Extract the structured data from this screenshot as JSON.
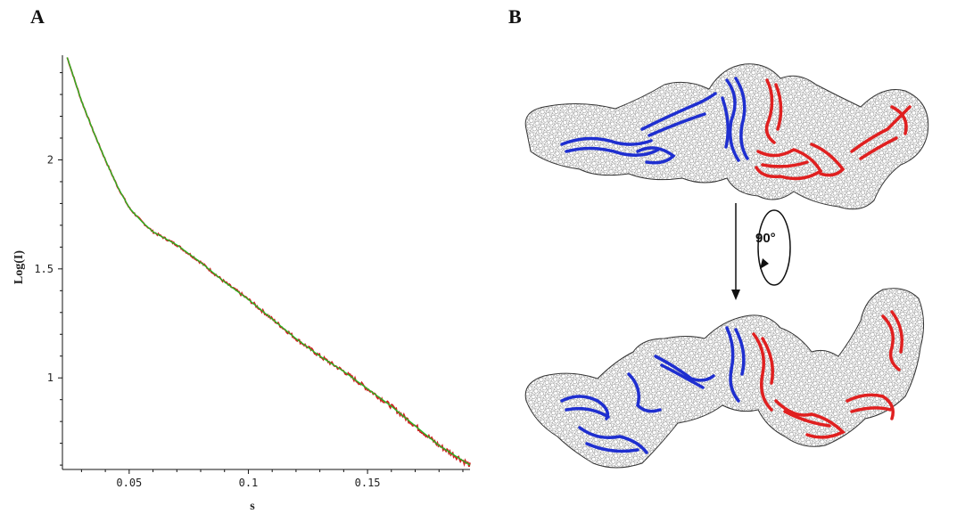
{
  "panels": {
    "a_label": "A",
    "b_label": "B"
  },
  "chart_data": {
    "type": "line",
    "title": "",
    "xlabel": "s",
    "ylabel": "Log(I)",
    "xlim": [
      0.022,
      0.193
    ],
    "ylim": [
      0.58,
      2.48
    ],
    "xticks": [
      0.05,
      0.1,
      0.15
    ],
    "xtick_labels": [
      "0.05",
      "0.1",
      "0.15"
    ],
    "yticks": [
      1,
      1.5,
      2
    ],
    "ytick_labels": [
      "1",
      "1.5",
      "2"
    ],
    "grid": false,
    "series": [
      {
        "name": "",
        "color": "#cc2222",
        "style": "noisy experimental",
        "x": [
          0.024,
          0.03,
          0.035,
          0.04,
          0.045,
          0.05,
          0.055,
          0.06,
          0.07,
          0.08,
          0.09,
          0.1,
          0.11,
          0.12,
          0.13,
          0.14,
          0.15,
          0.16,
          0.17,
          0.18,
          0.193
        ],
        "y": [
          2.47,
          2.27,
          2.13,
          2.0,
          1.88,
          1.78,
          1.72,
          1.67,
          1.61,
          1.53,
          1.44,
          1.36,
          1.27,
          1.18,
          1.1,
          1.03,
          0.95,
          0.87,
          0.78,
          0.69,
          0.6
        ]
      },
      {
        "name": "",
        "color": "#22bb22",
        "style": "smooth fit",
        "x": [
          0.024,
          0.03,
          0.035,
          0.04,
          0.045,
          0.05,
          0.055,
          0.06,
          0.07,
          0.08,
          0.09,
          0.1,
          0.11,
          0.12,
          0.13,
          0.14,
          0.15,
          0.16,
          0.17,
          0.18,
          0.193
        ],
        "y": [
          2.47,
          2.27,
          2.13,
          2.0,
          1.88,
          1.78,
          1.72,
          1.67,
          1.61,
          1.53,
          1.44,
          1.36,
          1.27,
          1.18,
          1.1,
          1.03,
          0.95,
          0.87,
          0.78,
          0.69,
          0.6
        ]
      }
    ]
  },
  "structure": {
    "rotation_label": "90°",
    "domain_colors": {
      "left_domains": "#1f2fd0",
      "right_domains": "#e02020",
      "envelope_mesh": "#555555"
    }
  }
}
